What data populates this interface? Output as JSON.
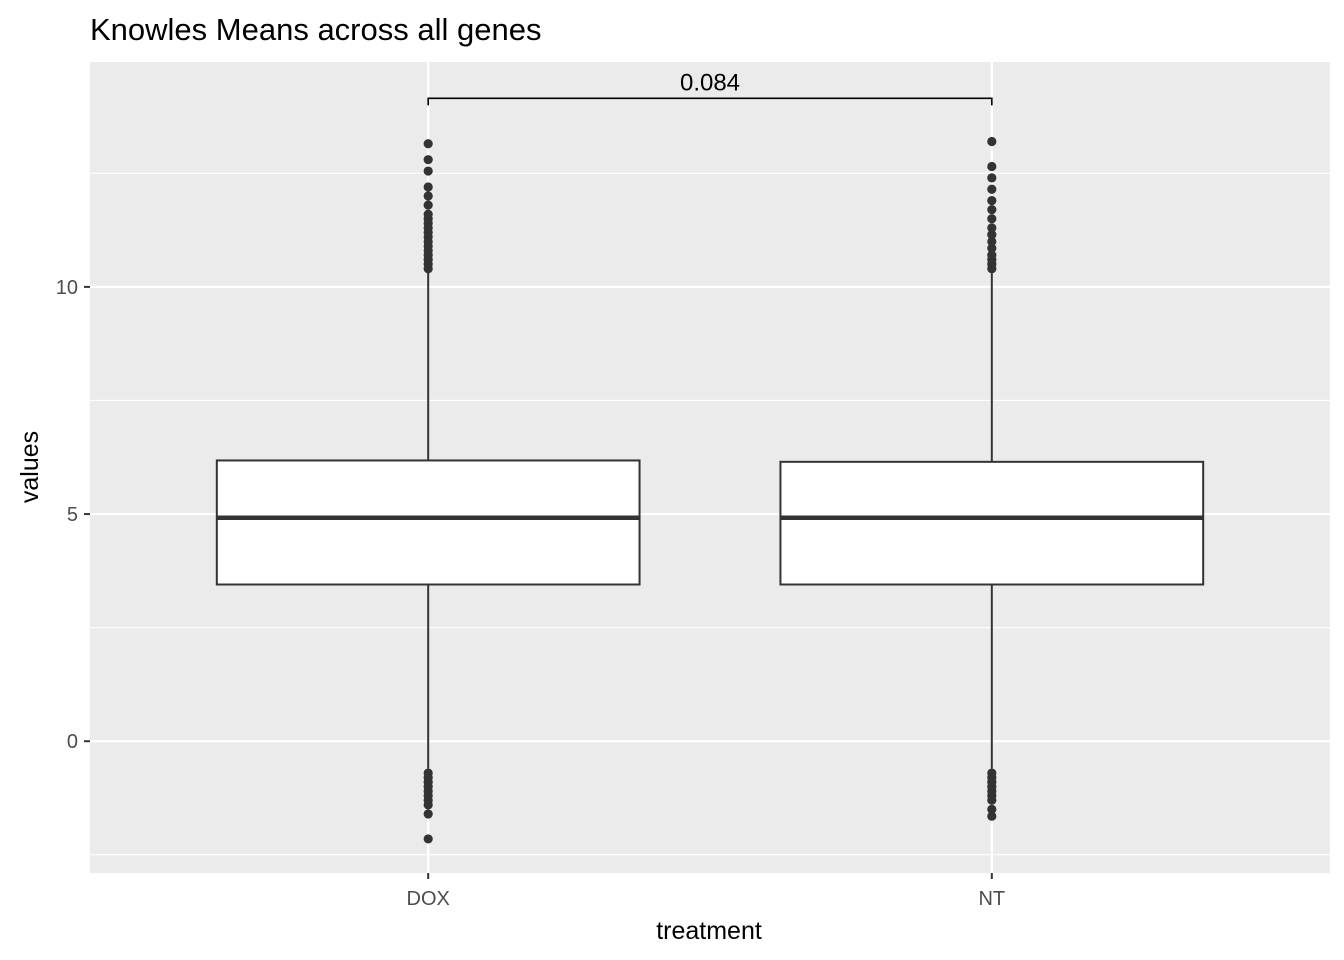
{
  "chart_data": {
    "type": "boxplot",
    "title": "Knowles Means across all genes",
    "xlabel": "treatment",
    "ylabel": "values",
    "ylim": [
      -2.9,
      14.95
    ],
    "y_ticks": [
      0,
      5,
      10
    ],
    "y_minor_ticks": [
      -2.5,
      2.5,
      7.5,
      12.5
    ],
    "grid": true,
    "categories": [
      "DOX",
      "NT"
    ],
    "boxes": [
      {
        "category": "DOX",
        "whisker_low": -0.6,
        "q1": 3.45,
        "median": 4.92,
        "q3": 6.18,
        "whisker_high": 10.32,
        "outliers_high": [
          10.4,
          10.5,
          10.6,
          10.7,
          10.8,
          10.9,
          11.0,
          11.1,
          11.2,
          11.3,
          11.4,
          11.5,
          11.6,
          11.8,
          12.0,
          12.2,
          12.55,
          12.8,
          13.15
        ],
        "outliers_low": [
          -0.7,
          -0.8,
          -0.9,
          -1.0,
          -1.1,
          -1.2,
          -1.3,
          -1.4,
          -1.6,
          -2.15
        ]
      },
      {
        "category": "NT",
        "whisker_low": -0.6,
        "q1": 3.45,
        "median": 4.92,
        "q3": 6.15,
        "whisker_high": 10.3,
        "outliers_high": [
          10.4,
          10.5,
          10.6,
          10.7,
          10.85,
          11.0,
          11.15,
          11.3,
          11.5,
          11.7,
          11.9,
          12.15,
          12.4,
          12.65,
          13.2
        ],
        "outliers_low": [
          -0.7,
          -0.8,
          -0.9,
          -1.0,
          -1.1,
          -1.2,
          -1.3,
          -1.5,
          -1.65
        ]
      }
    ],
    "comparison": {
      "groups": [
        "DOX",
        "NT"
      ],
      "label": "0.084",
      "bracket_y": 14.15
    },
    "colors": {
      "panel_background": "#ebebeb",
      "grid": "#ffffff",
      "box_fill": "#ffffff",
      "box_line": "#333333",
      "outlier": "#333333",
      "tick_label": "#4d4d4d",
      "text": "#000000"
    }
  }
}
